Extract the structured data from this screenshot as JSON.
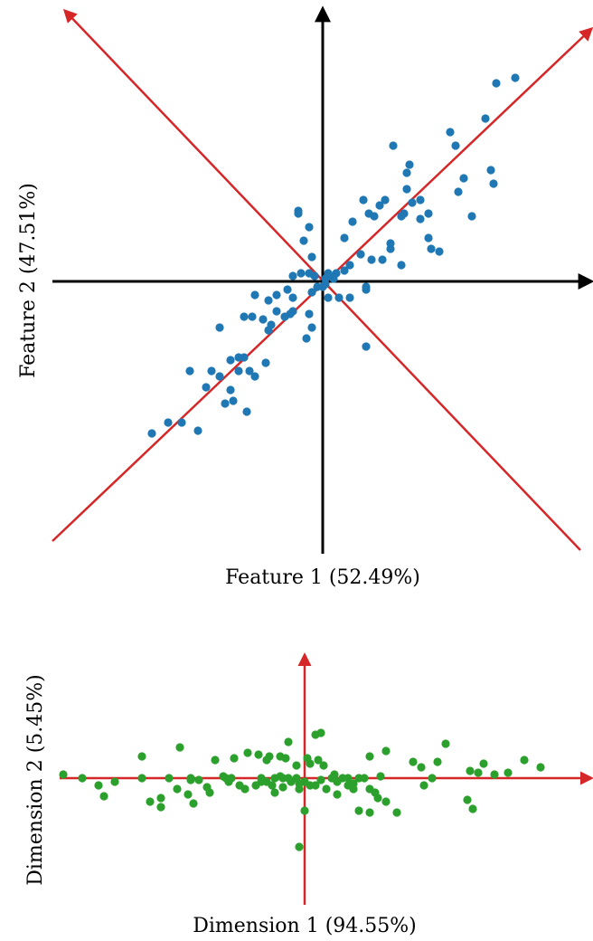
{
  "colors": {
    "axis_black": "#000000",
    "axis_red": "#d62728",
    "series_blue": "#1f77b4",
    "series_green": "#2ca02c"
  },
  "chart_data": [
    {
      "type": "scatter",
      "title": "",
      "xlabel": "Feature 1 (52.49%)",
      "ylabel": "Feature 2 (47.51%)",
      "xlim": [
        -1,
        1
      ],
      "ylim": [
        -1,
        1
      ],
      "axes": "black crosshair through origin with arrowheads",
      "principal_directions": [
        [
          1,
          1
        ],
        [
          -1,
          1
        ]
      ],
      "grid": false,
      "legend": "none",
      "series": [
        {
          "color": "#1f77b4",
          "points": [
            [
              0.71,
              0.75
            ],
            [
              0.64,
              0.73
            ],
            [
              0.6,
              0.6
            ],
            [
              0.47,
              0.55
            ],
            [
              0.49,
              0.5
            ],
            [
              0.26,
              0.5
            ],
            [
              0.32,
              0.43
            ],
            [
              0.31,
              0.4
            ],
            [
              0.62,
              0.41
            ],
            [
              0.52,
              0.38
            ],
            [
              0.63,
              0.36
            ],
            [
              0.31,
              0.34
            ],
            [
              0.5,
              0.33
            ],
            [
              0.15,
              0.3
            ],
            [
              0.33,
              0.29
            ],
            [
              0.36,
              0.3
            ],
            [
              0.23,
              0.3
            ],
            [
              0.21,
              0.28
            ],
            [
              0.17,
              0.25
            ],
            [
              0.39,
              0.25
            ],
            [
              0.55,
              0.24
            ],
            [
              0.3,
              0.25
            ],
            [
              0.29,
              0.24
            ],
            [
              0.36,
              0.23
            ],
            [
              0.11,
              0.22
            ],
            [
              0.19,
              0.24
            ],
            [
              0.39,
              0.16
            ],
            [
              0.25,
              0.14
            ],
            [
              0.08,
              0.16
            ],
            [
              0.4,
              0.12
            ],
            [
              0.25,
              0.12
            ],
            [
              0.43,
              0.11
            ],
            [
              0.29,
              0.06
            ],
            [
              0.22,
              0.08
            ],
            [
              0.18,
              0.08
            ],
            [
              0.14,
              0.1
            ],
            [
              0.1,
              0.06
            ],
            [
              0.08,
              0.04
            ],
            [
              0.05,
              0.03
            ],
            [
              0.03,
              0.02
            ],
            [
              0.01,
              0.01
            ],
            [
              -0.03,
              0.02
            ],
            [
              0.01,
              -0.01
            ],
            [
              0.04,
              0.01
            ],
            [
              0.02,
              0.03
            ],
            [
              -0.05,
              0.03
            ],
            [
              -0.04,
              0.09
            ],
            [
              -0.07,
              0.15
            ],
            [
              -0.05,
              0.2
            ],
            [
              -0.08,
              0.03
            ],
            [
              -0.11,
              0.02
            ],
            [
              -0.09,
              0.26
            ],
            [
              -0.09,
              0.25
            ],
            [
              0.0,
              -0.02
            ],
            [
              -0.02,
              -0.02
            ],
            [
              0.1,
              -0.06
            ],
            [
              0.06,
              -0.06
            ],
            [
              0.02,
              -0.06
            ],
            [
              0.16,
              -0.03
            ],
            [
              0.16,
              -0.02
            ],
            [
              -0.04,
              -0.04
            ],
            [
              -0.05,
              -0.12
            ],
            [
              -0.11,
              -0.06
            ],
            [
              -0.13,
              -0.03
            ],
            [
              -0.17,
              -0.05
            ],
            [
              -0.2,
              -0.07
            ],
            [
              -0.25,
              -0.05
            ],
            [
              -0.11,
              -0.11
            ],
            [
              -0.12,
              -0.12
            ],
            [
              -0.14,
              -0.13
            ],
            [
              -0.17,
              -0.11
            ],
            [
              -0.22,
              -0.14
            ],
            [
              -0.26,
              -0.13
            ],
            [
              -0.29,
              -0.13
            ],
            [
              -0.19,
              -0.16
            ],
            [
              -0.2,
              -0.18
            ],
            [
              -0.04,
              -0.17
            ],
            [
              -0.06,
              -0.21
            ],
            [
              0.16,
              -0.24
            ],
            [
              -0.38,
              -0.17
            ],
            [
              -0.29,
              -0.28
            ],
            [
              -0.31,
              -0.28
            ],
            [
              -0.34,
              -0.29
            ],
            [
              -0.31,
              -0.33
            ],
            [
              -0.41,
              -0.33
            ],
            [
              -0.38,
              -0.35
            ],
            [
              -0.21,
              -0.3
            ],
            [
              -0.25,
              -0.35
            ],
            [
              -0.27,
              -0.33
            ],
            [
              -0.49,
              -0.33
            ],
            [
              -0.43,
              -0.39
            ],
            [
              -0.34,
              -0.4
            ],
            [
              -0.33,
              -0.44
            ],
            [
              -0.28,
              -0.48
            ],
            [
              -0.52,
              -0.52
            ],
            [
              -0.57,
              -0.52
            ],
            [
              -0.63,
              -0.56
            ],
            [
              -0.46,
              -0.55
            ],
            [
              -0.36,
              -0.45
            ]
          ]
        }
      ]
    },
    {
      "type": "scatter",
      "title": "",
      "xlabel": "Dimension 1 (94.55%)",
      "ylabel": "Dimension 2 (5.45%)",
      "xlim": [
        -1,
        1
      ],
      "ylim": [
        -0.5,
        0.5
      ],
      "axes": "red crosshair through origin with arrowheads",
      "grid": false,
      "legend": "none",
      "series": [
        {
          "color": "#2ca02c",
          "points": [
            [
              -0.89,
              0.02
            ],
            [
              -0.82,
              0.0
            ],
            [
              -0.76,
              -0.04
            ],
            [
              -0.74,
              -0.1
            ],
            [
              -0.6,
              0.0
            ],
            [
              -0.57,
              -0.13
            ],
            [
              -0.53,
              -0.11
            ],
            [
              -0.53,
              -0.16
            ],
            [
              -0.5,
              0.0
            ],
            [
              -0.42,
              -0.01
            ],
            [
              -0.42,
              0.0
            ],
            [
              -0.43,
              -0.09
            ],
            [
              -0.39,
              -0.01
            ],
            [
              -0.41,
              -0.14
            ],
            [
              -0.35,
              -0.08
            ],
            [
              -0.3,
              0.01
            ],
            [
              -0.29,
              0.0
            ],
            [
              -0.28,
              -0.02
            ],
            [
              -0.27,
              0.0
            ],
            [
              -0.22,
              -0.06
            ],
            [
              -0.16,
              0.0
            ],
            [
              -0.16,
              -0.02
            ],
            [
              -0.14,
              -0.02
            ],
            [
              -0.12,
              -0.04
            ],
            [
              -0.11,
              -0.08
            ],
            [
              -0.11,
              0.0
            ],
            [
              -0.09,
              0.01
            ],
            [
              -0.08,
              0.0
            ],
            [
              -0.06,
              0.0
            ],
            [
              -0.05,
              -0.02
            ],
            [
              -0.03,
              0.0
            ],
            [
              -0.02,
              -0.03
            ],
            [
              -0.02,
              -0.06
            ],
            [
              0.0,
              -0.02
            ],
            [
              0.02,
              -0.04
            ],
            [
              0.04,
              -0.04
            ],
            [
              0.06,
              -0.01
            ],
            [
              0.08,
              -0.06
            ],
            [
              0.1,
              0.0
            ],
            [
              0.12,
              -0.02
            ],
            [
              0.14,
              0.0
            ],
            [
              0.16,
              -0.04
            ],
            [
              0.18,
              -0.06
            ],
            [
              0.2,
              0.0
            ],
            [
              0.22,
              0.0
            ],
            [
              0.24,
              -0.06
            ],
            [
              0.26,
              -0.08
            ],
            [
              0.27,
              -0.11
            ],
            [
              0.3,
              -0.13
            ],
            [
              -0.06,
              0.2
            ],
            [
              -0.09,
              0.12
            ],
            [
              -0.07,
              0.11
            ],
            [
              0.01,
              0.11
            ],
            [
              0.05,
              0.1
            ],
            [
              0.02,
              0.08
            ],
            [
              0.07,
              0.07
            ],
            [
              0.04,
              0.24
            ],
            [
              0.06,
              0.25
            ],
            [
              -0.03,
              0.07
            ],
            [
              -0.13,
              0.12
            ],
            [
              0.24,
              0.12
            ],
            [
              0.3,
              0.15
            ],
            [
              0.4,
              0.09
            ],
            [
              0.43,
              0.06
            ],
            [
              0.47,
              0.0
            ],
            [
              0.49,
              0.09
            ],
            [
              0.52,
              0.19
            ],
            [
              0.61,
              0.04
            ],
            [
              0.64,
              0.03
            ],
            [
              0.66,
              0.08
            ],
            [
              0.7,
              0.02
            ],
            [
              0.75,
              0.03
            ],
            [
              0.81,
              0.1
            ],
            [
              0.87,
              0.06
            ],
            [
              -0.6,
              0.12
            ],
            [
              -0.46,
              0.17
            ],
            [
              -0.33,
              0.1
            ],
            [
              -0.26,
              0.11
            ],
            [
              -0.21,
              0.14
            ],
            [
              -0.17,
              0.13
            ],
            [
              -0.14,
              0.1
            ],
            [
              -0.08,
              -0.05
            ],
            [
              0.0,
              -0.18
            ],
            [
              0.12,
              -0.09
            ],
            [
              0.16,
              0.0
            ],
            [
              0.2,
              -0.18
            ],
            [
              0.24,
              -0.19
            ],
            [
              0.34,
              -0.19
            ],
            [
              0.44,
              -0.04
            ],
            [
              0.6,
              -0.12
            ],
            [
              0.62,
              -0.17
            ],
            [
              -0.7,
              -0.02
            ],
            [
              -0.47,
              -0.06
            ],
            [
              -0.36,
              -0.05
            ],
            [
              -0.24,
              -0.04
            ],
            [
              -0.18,
              -0.04
            ],
            [
              -0.02,
              -0.38
            ],
            [
              0.11,
              0.02
            ],
            [
              0.18,
              -0.03
            ],
            [
              0.28,
              0.01
            ]
          ]
        }
      ]
    }
  ]
}
